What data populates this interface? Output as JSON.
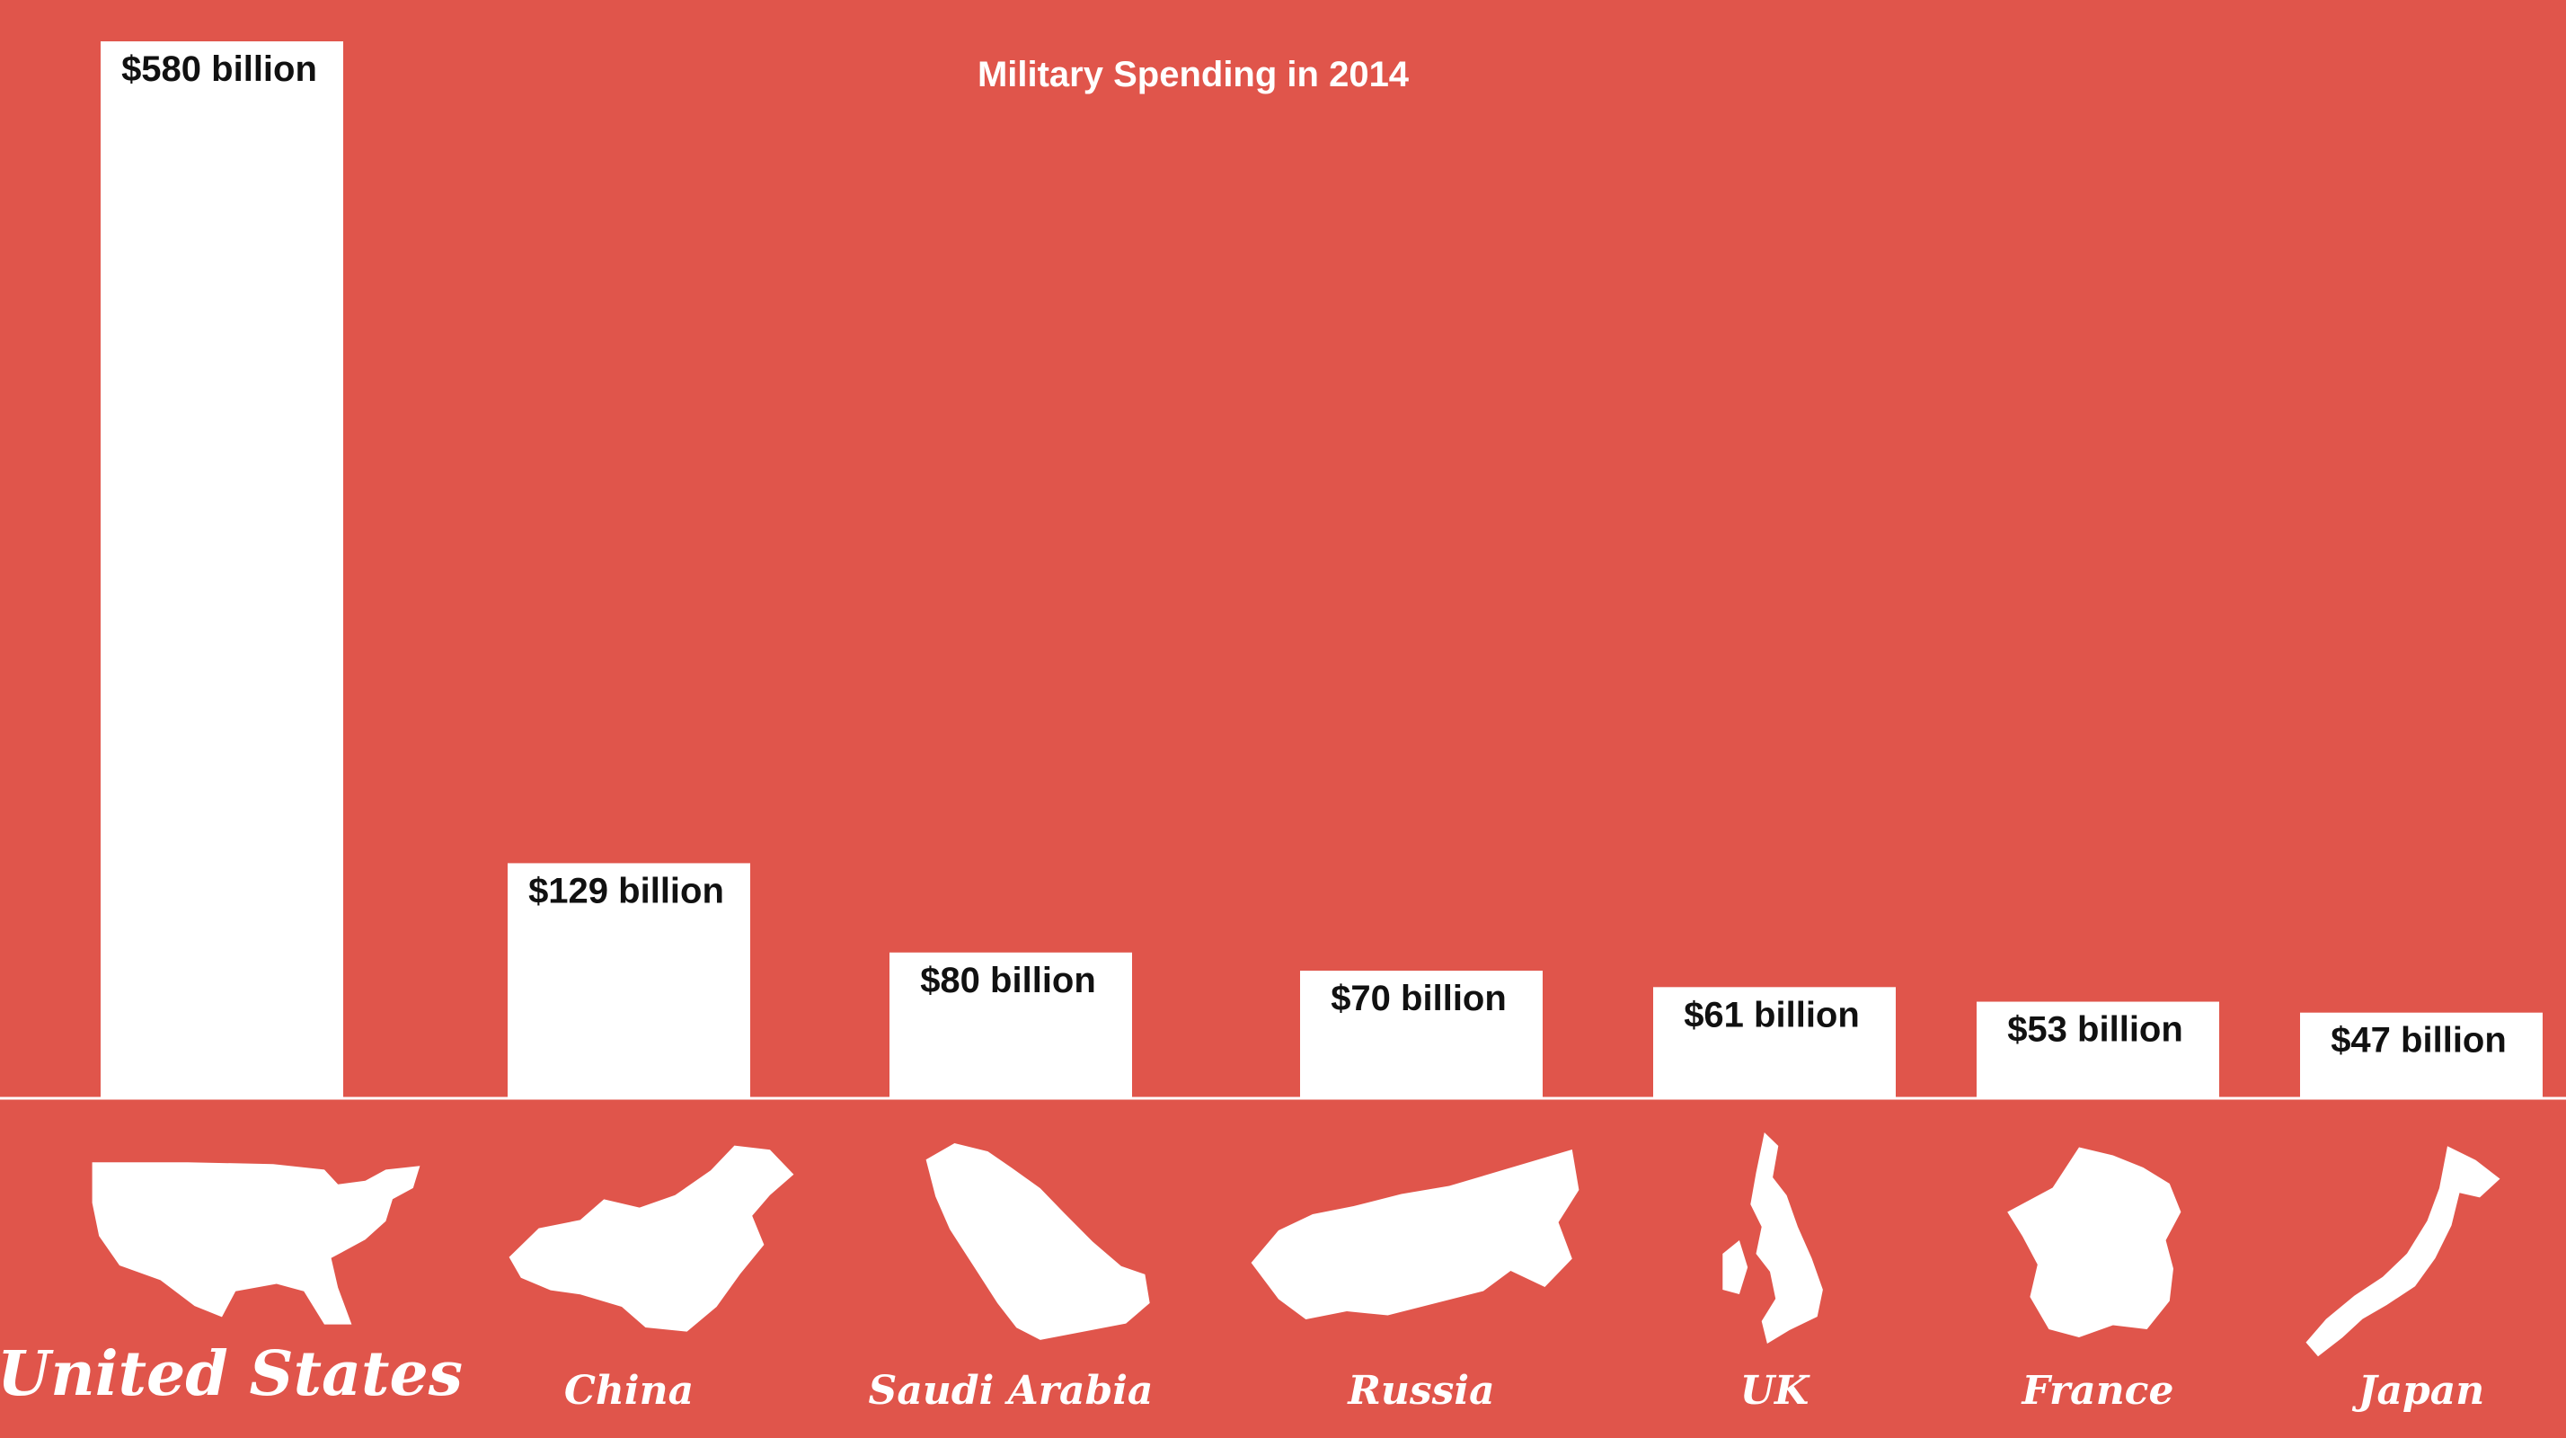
{
  "chart_data": {
    "type": "bar",
    "title": "Military Spending in 2014",
    "categories": [
      "United States",
      "China",
      "Saudi Arabia",
      "Russia",
      "UK",
      "France",
      "Japan"
    ],
    "values": [
      580,
      129,
      80,
      70,
      61,
      53,
      47
    ],
    "value_labels": [
      "$580 billion",
      "$129 billion",
      "$80 billion",
      "$70 billion",
      "$61 billion",
      "$53 billion",
      "$47 billion"
    ],
    "unit": "billion USD",
    "ylim": [
      0,
      580
    ],
    "grid": false,
    "legend": "none",
    "icons": [
      "usa-map-icon",
      "china-map-icon",
      "saudi-arabia-map-icon",
      "russia-map-icon",
      "uk-map-icon",
      "france-map-icon",
      "japan-map-icon"
    ]
  },
  "colors": {
    "background": "#e0554b",
    "bar": "#ffffff",
    "value_text": "#111111",
    "label_text": "#ffffff",
    "baseline": "#ffffff"
  }
}
